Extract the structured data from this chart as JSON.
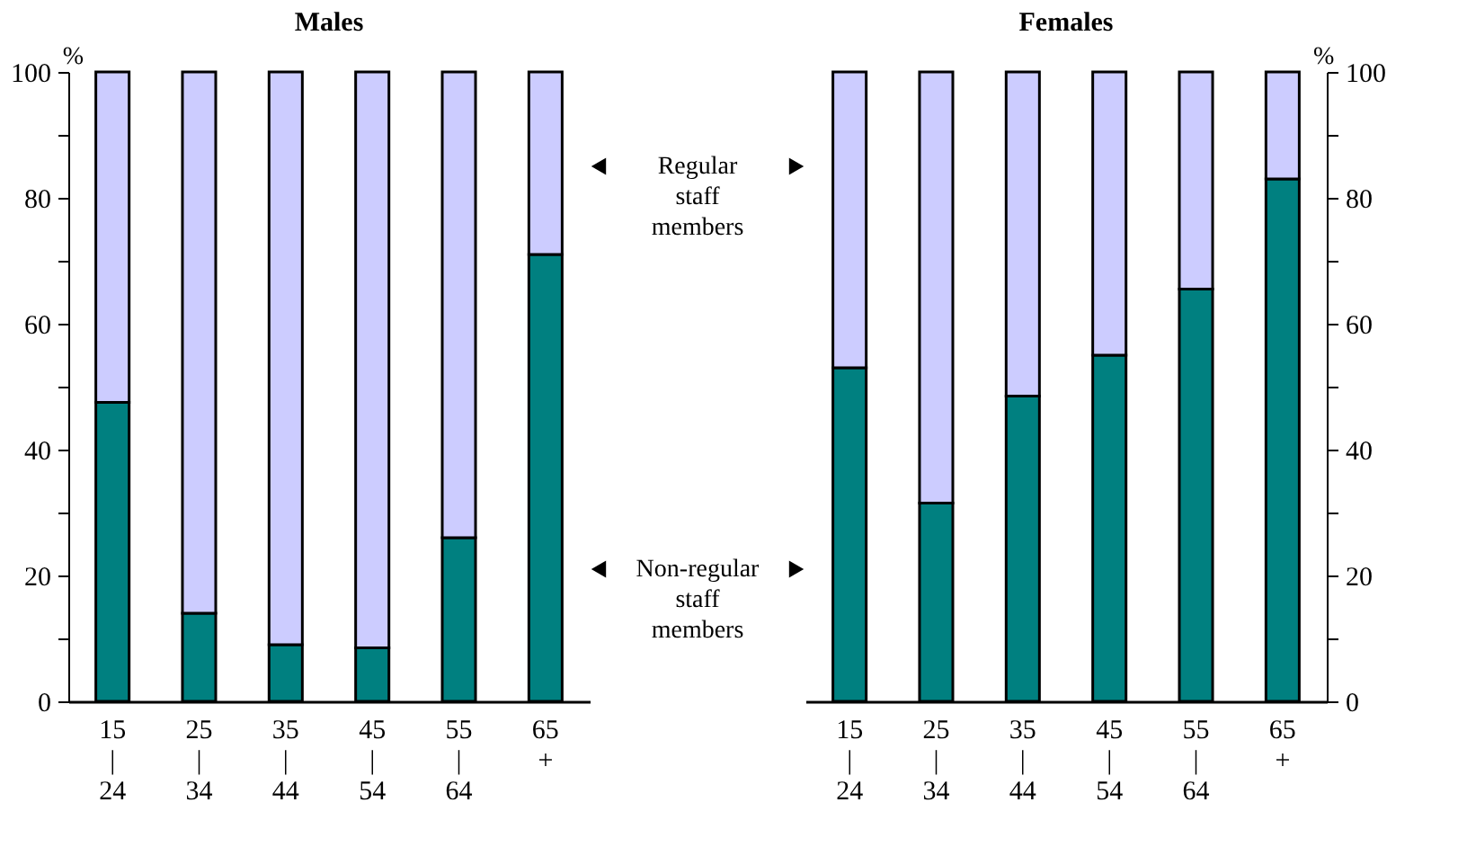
{
  "chart_data": [
    {
      "type": "bar",
      "title": "Males",
      "ylabel": "%",
      "stacked": true,
      "grid": false,
      "legend": false,
      "categories": [
        "15\n|\n24",
        "25\n|\n34",
        "35\n|\n44",
        "45\n|\n54",
        "55\n|\n64",
        "65\n+"
      ],
      "series": [
        {
          "color": "#008080",
          "values": [
            47.5,
            14,
            9,
            8.5,
            26,
            71
          ]
        },
        {
          "color": "#ccccff",
          "values": [
            52.5,
            86,
            91,
            91.5,
            74,
            29
          ]
        }
      ],
      "ylim": [
        0,
        100
      ],
      "yticks": [
        0,
        {
          "value": 10,
          "label": null
        },
        20,
        {
          "value": 30,
          "label": null
        },
        40,
        {
          "value": 50,
          "label": null
        },
        60,
        {
          "value": 70,
          "label": null
        },
        80,
        {
          "value": 90,
          "label": null
        },
        100
      ],
      "annotations": [
        "Regular staff members",
        "Non-regular staff members"
      ]
    },
    {
      "type": "bar",
      "title": "Females",
      "ylabel": "%",
      "stacked": true,
      "grid": false,
      "legend": false,
      "categories": [
        "15\n|\n24",
        "25\n|\n34",
        "35\n|\n44",
        "45\n|\n54",
        "55\n|\n64",
        "65\n+"
      ],
      "series": [
        {
          "color": "#008080",
          "values": [
            53,
            31.5,
            48.5,
            55,
            65.5,
            83
          ]
        },
        {
          "color": "#ccccff",
          "values": [
            47,
            68.5,
            51.5,
            45,
            34.5,
            17
          ]
        }
      ],
      "ylim": [
        0,
        100
      ],
      "yticks": [
        0,
        {
          "value": 10,
          "label": null
        },
        20,
        {
          "value": 30,
          "label": null
        },
        40,
        {
          "value": 50,
          "label": null
        },
        60,
        {
          "value": 70,
          "label": null
        },
        80,
        {
          "value": 90,
          "label": null
        },
        100
      ]
    }
  ]
}
